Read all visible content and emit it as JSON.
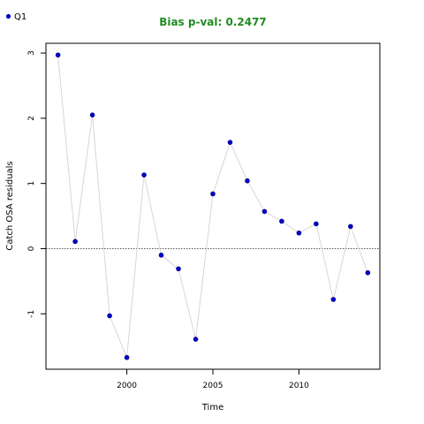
{
  "chart_data": {
    "type": "scatter",
    "title": "Bias p-val: 0.2477",
    "title_color": "#228B22",
    "xlabel": "Time",
    "ylabel": "Catch OSA residuals",
    "xlim": [
      1995.3,
      2014.7
    ],
    "ylim": [
      -1.85,
      3.15
    ],
    "xticks": [
      2000,
      2005,
      2010
    ],
    "yticks": [
      -1,
      0,
      1,
      2,
      3
    ],
    "reference_line": 0,
    "grid": false,
    "legend_position": "top-left",
    "point_color": "#0000CD",
    "line_color": "#D3D3D3",
    "series": [
      {
        "name": "Q1",
        "x": [
          1996,
          1997,
          1998,
          1999,
          2000,
          2001,
          2002,
          2003,
          2004,
          2005,
          2006,
          2007,
          2008,
          2009,
          2010,
          2011,
          2012,
          2013,
          2014
        ],
        "values": [
          2.97,
          0.11,
          2.05,
          -1.03,
          -1.67,
          1.13,
          -0.1,
          -0.31,
          -1.39,
          0.84,
          1.63,
          1.04,
          0.57,
          0.42,
          0.24,
          0.38,
          -0.78,
          0.34,
          -0.37
        ]
      }
    ]
  }
}
